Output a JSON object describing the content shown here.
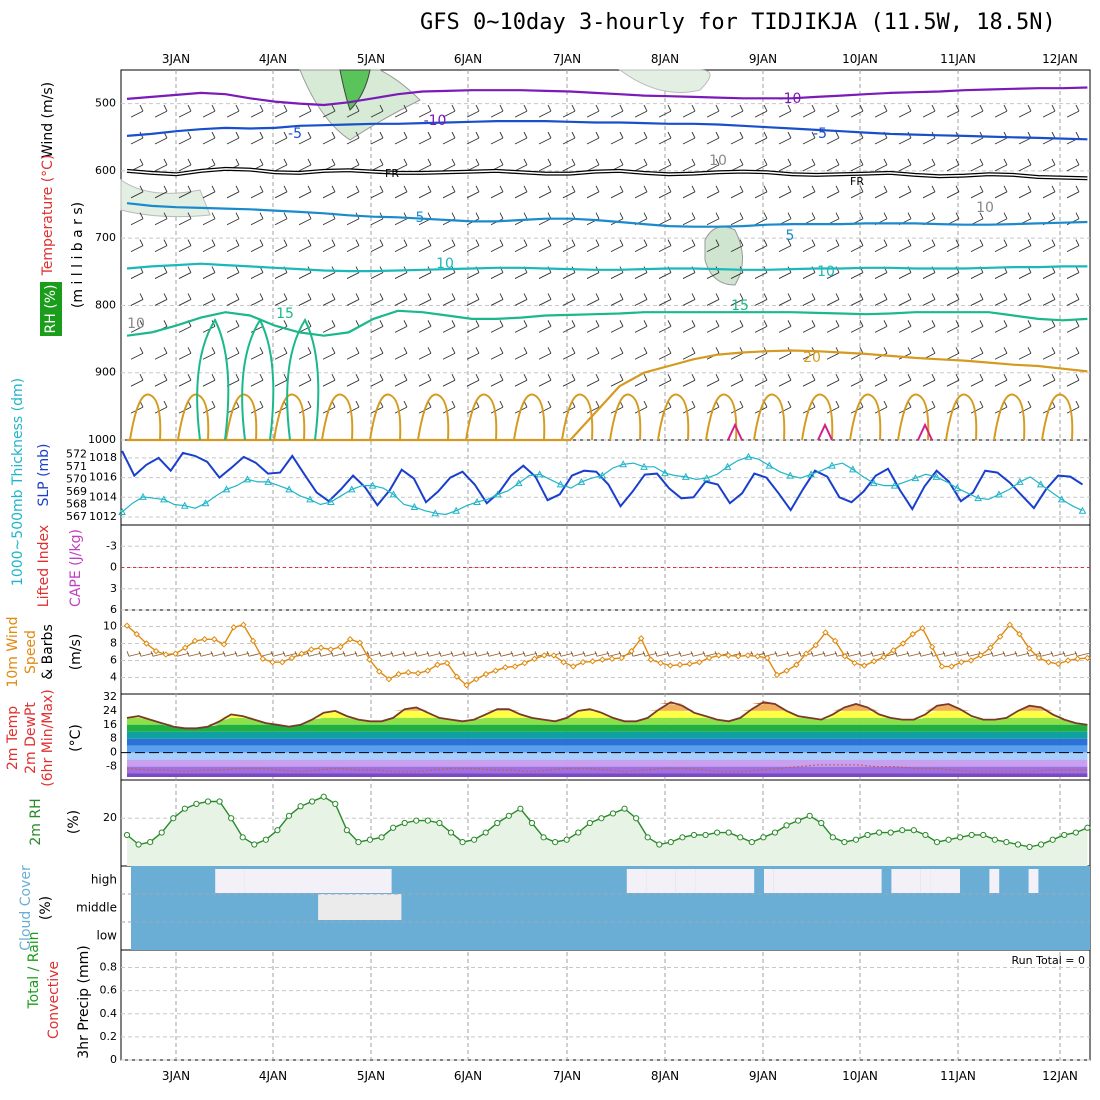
{
  "title": "GFS 0~10day 3-hourly for TIDJIKJA (11.5W, 18.5N)",
  "date_labels": [
    "3JAN",
    "4JAN",
    "5JAN",
    "6JAN",
    "7JAN",
    "8JAN",
    "9JAN",
    "10JAN",
    "11JAN",
    "12JAN"
  ],
  "colors": {
    "wind_label": "#000000",
    "temp_label": "#e03030",
    "rh_label": "#1a9d1a",
    "thickness": "#20b5c8",
    "slp": "#1a3fcc",
    "lifted_index": "#e03030",
    "cape": "#c040c0",
    "wind10m": "#e08a10",
    "barb": "#8a5a2a",
    "rh2m": "#2a8a2a",
    "cloud": "#6aaed6",
    "rain_total": "#1a9d1a",
    "convective": "#e03030"
  },
  "panels": {
    "upper_air": {
      "ylabel_wind": "Wind (m/s)",
      "ylabel_temp": "Temperature (°C)",
      "ylabel_rh": "RH (%)",
      "ylabel_p": "(m i l l i b a r s)",
      "ticks": [
        "500",
        "600",
        "700",
        "800",
        "900",
        "1000"
      ],
      "freezing_label": "FR",
      "contour_labels": [
        "-10",
        "-10",
        "-5",
        "-5",
        "5",
        "5",
        "10",
        "10",
        "15",
        "15",
        "20",
        "10",
        "10",
        "10"
      ]
    },
    "slp_thickness": {
      "ylabel_thickness": "1000~500mb Thickness (dm)",
      "ylabel_slp": "SLP (mb)",
      "thickness_ticks": [
        "572",
        "571",
        "570",
        "569",
        "568",
        "567"
      ],
      "slp_ticks": [
        "1018",
        "1016",
        "1014",
        "1012"
      ]
    },
    "stability": {
      "ylabel_li": "Lifted Index",
      "ylabel_cape": "CAPE (J/kg)",
      "ticks": [
        "-3",
        "0",
        "3",
        "6"
      ]
    },
    "wind10m": {
      "ylabel1": "10m Wind",
      "ylabel2": "Speed",
      "ylabel3": "& Barbs",
      "ylabel_unit": "(m/s)",
      "ticks": [
        "10",
        "8",
        "6",
        "4"
      ]
    },
    "temp2m": {
      "ylabel1": "2m Temp",
      "ylabel2": "2m DewPt",
      "ylabel3": "(6hr Min/Max)",
      "ylabel_unit": "(°C)",
      "ticks": [
        "32",
        "24",
        "16",
        "8",
        "0",
        "-8"
      ]
    },
    "rh2m": {
      "ylabel": "2m RH",
      "ylabel_unit": "(%)",
      "ticks": [
        "20"
      ]
    },
    "cloud": {
      "ylabel": "Cloud Cover",
      "ylabel_unit": "(%)",
      "levels": [
        "high",
        "middle",
        "low"
      ]
    },
    "precip": {
      "ylabel_total": "Total / Rain",
      "ylabel_conv": "Convective",
      "ylabel_unit": "3hr Precip (mm)",
      "run_total": "Run Total = 0",
      "ticks": [
        "0.8",
        "0.6",
        "0.4",
        "0.2",
        "0"
      ]
    }
  },
  "chart_data": {
    "type": "line",
    "x_unit": "days since 00Z 3JAN (3-hourly steps)",
    "x_range": [
      -0.5,
      9.3
    ],
    "upper_air_isotherms": [
      {
        "temp_c": -10,
        "pressure_mb": [
          493,
          490,
          487,
          484,
          486,
          492,
          497,
          500,
          502,
          498,
          492,
          486,
          482,
          481,
          480,
          480,
          480,
          481,
          482,
          484,
          486,
          488,
          489,
          490,
          491,
          492,
          492,
          492,
          490,
          488,
          486,
          484,
          483,
          482,
          480,
          479,
          478,
          477,
          477,
          476
        ]
      },
      {
        "temp_c": -5,
        "pressure_mb": [
          548,
          545,
          541,
          538,
          536,
          537,
          536,
          533,
          532,
          531,
          530,
          530,
          529,
          528,
          527,
          526,
          526,
          526,
          527,
          528,
          528,
          529,
          530,
          530,
          531,
          533,
          535,
          537,
          539,
          541,
          543,
          545,
          546,
          547,
          548,
          549,
          550,
          551,
          552,
          553
        ]
      },
      {
        "temp_c": 0,
        "pressure_mb": [
          600,
          603,
          605,
          600,
          597,
          598,
          602,
          603,
          600,
          599,
          601,
          603,
          603,
          602,
          601,
          600,
          602,
          604,
          604,
          601,
          600,
          603,
          605,
          604,
          602,
          601,
          602,
          605,
          606,
          605,
          604,
          603,
          606,
          608,
          607,
          605,
          606,
          609,
          610,
          611
        ]
      },
      {
        "temp_c": 5,
        "pressure_mb": [
          648,
          652,
          654,
          655,
          656,
          657,
          659,
          661,
          663,
          666,
          668,
          669,
          671,
          673,
          675,
          675,
          673,
          671,
          671,
          673,
          676,
          679,
          682,
          683,
          683,
          682,
          680,
          679,
          679,
          679,
          678,
          678,
          678,
          679,
          680,
          680,
          679,
          678,
          677,
          676
        ]
      },
      {
        "temp_c": 10,
        "pressure_mb": [
          745,
          742,
          740,
          738,
          740,
          742,
          744,
          746,
          748,
          749,
          749,
          748,
          747,
          746,
          745,
          744,
          744,
          745,
          746,
          747,
          747,
          746,
          745,
          745,
          746,
          747,
          747,
          746,
          745,
          745,
          744,
          744,
          745,
          745,
          745,
          744,
          743,
          743,
          742,
          742
        ]
      },
      {
        "temp_c": 15,
        "pressure_mb": [
          845,
          840,
          830,
          818,
          810,
          815,
          830,
          840,
          845,
          840,
          820,
          808,
          810,
          815,
          820,
          820,
          818,
          815,
          814,
          813,
          812,
          810,
          810,
          810,
          810,
          810,
          810,
          810,
          811,
          812,
          813,
          812,
          810,
          810,
          810,
          810,
          815,
          820,
          822,
          820
        ]
      },
      {
        "temp_c": 20,
        "pressure_mb": [
          1000,
          1000,
          1000,
          1000,
          1000,
          1000,
          1000,
          1000,
          1000,
          1000,
          1000,
          1000,
          1000,
          1000,
          1000,
          1000,
          1000,
          1000,
          1000,
          960,
          920,
          900,
          890,
          880,
          873,
          870,
          868,
          867,
          868,
          870,
          872,
          875,
          878,
          880,
          882,
          885,
          888,
          890,
          894,
          898
        ]
      }
    ],
    "slp_mb": [
      1018.7,
      1016.2,
      1017.3,
      1018.0,
      1016.7,
      1018.5,
      1018.2,
      1017.6,
      1016.0,
      1017.0,
      1018.1,
      1017.5,
      1016.4,
      1016.5,
      1018.2,
      1016.3,
      1014.5,
      1013.6,
      1014.8,
      1016.2,
      1015.0,
      1013.2,
      1014.7,
      1016.8,
      1015.9,
      1013.5,
      1014.6,
      1016.0,
      1016.6,
      1015.3,
      1013.4,
      1014.5,
      1016.2,
      1017.2,
      1016.1,
      1013.7,
      1014.3,
      1016.2,
      1016.7,
      1016.6,
      1015.3,
      1013.1,
      1014.6,
      1016.3,
      1016.4,
      1014.9,
      1013.9,
      1014.0,
      1015.6,
      1015.3,
      1013.4,
      1014.4,
      1016.4,
      1016.0,
      1014.4,
      1012.7,
      1014.8,
      1016.7,
      1016.1,
      1014.0,
      1013.5,
      1014.6,
      1016.2,
      1016.9,
      1014.7,
      1012.8,
      1015.1,
      1016.7,
      1015.6,
      1013.6,
      1014.5,
      1016.7,
      1016.5,
      1015.5,
      1014.2,
      1012.9,
      1014.8,
      1016.2,
      1016.1,
      1015.3
    ],
    "thickness_dm": [
      567.4,
      568.1,
      568.6,
      568.5,
      568.4,
      568.0,
      567.9,
      567.7,
      568.1,
      568.7,
      569.2,
      569.5,
      570.0,
      569.8,
      569.8,
      569.5,
      569.2,
      568.7,
      568.4,
      568.0,
      568.2,
      568.7,
      569.2,
      569.5,
      569.5,
      569.3,
      568.8,
      568.0,
      567.8,
      567.5,
      567.3,
      567.2,
      567.5,
      567.9,
      568.2,
      568.4,
      568.8,
      569.1,
      569.7,
      570.3,
      570.4,
      570.0,
      569.6,
      569.3,
      569.8,
      570.1,
      570.3,
      570.9,
      571.2,
      571.3,
      571.0,
      571.0,
      570.5,
      570.3,
      570.2,
      570.0,
      570.1,
      570.4,
      571.0,
      571.5,
      571.8,
      571.6,
      571.1,
      570.6,
      570.3,
      570.1,
      570.4,
      570.7,
      571.1,
      571.3,
      570.8,
      570.2,
      569.7,
      569.5,
      569.5,
      569.8,
      570.1,
      570.4,
      570.2,
      569.8,
      569.3,
      568.9,
      568.5,
      568.4,
      568.8,
      569.2,
      569.8,
      570.2,
      569.6,
      569.0,
      568.4,
      567.9,
      567.5
    ],
    "lifted_index_zero_line": 0,
    "wind10m_speed_ms": [
      10.1,
      9.1,
      8.0,
      7.1,
      6.7,
      6.8,
      7.5,
      8.3,
      8.5,
      8.5,
      7.9,
      9.9,
      10.2,
      8.3,
      6.2,
      5.8,
      5.8,
      6.3,
      6.8,
      7.3,
      7.5,
      7.3,
      7.6,
      8.5,
      8.1,
      6.1,
      4.7,
      3.8,
      4.4,
      4.6,
      4.5,
      4.8,
      5.5,
      5.7,
      4.1,
      3.1,
      3.8,
      4.4,
      4.8,
      5.2,
      5.3,
      5.7,
      6.2,
      6.6,
      6.6,
      5.8,
      5.3,
      5.8,
      5.9,
      6.1,
      6.2,
      6.3,
      7.1,
      8.6,
      6.1,
      5.7,
      5.4,
      5.5,
      5.6,
      5.8,
      6.3,
      6.6,
      6.6,
      6.5,
      6.6,
      6.5,
      6.3,
      4.3,
      4.8,
      5.5,
      6.8,
      7.8,
      9.3,
      8.3,
      6.5,
      5.7,
      5.4,
      5.9,
      6.4,
      7.2,
      8.0,
      9.1,
      9.8,
      7.6,
      5.3,
      5.3,
      5.8,
      6.0,
      6.6,
      7.5,
      8.8,
      10.2,
      9.1,
      7.4,
      6.3,
      5.8,
      5.6,
      6.0,
      6.2,
      6.3
    ],
    "temp2m_c": [
      20,
      21,
      19,
      17,
      15,
      14,
      14,
      15,
      18,
      22,
      21,
      19,
      17,
      16,
      15,
      16,
      19,
      23,
      24,
      21,
      19,
      18,
      18,
      20,
      25,
      26,
      23,
      20,
      19,
      18,
      19,
      22,
      25,
      25,
      22,
      20,
      19,
      18,
      20,
      24,
      25,
      23,
      20,
      18,
      18,
      20,
      25,
      29,
      27,
      23,
      21,
      19,
      18,
      20,
      25,
      29,
      28,
      24,
      21,
      20,
      19,
      22,
      26,
      28,
      26,
      22,
      20,
      19,
      19,
      22,
      27,
      28,
      25,
      21,
      19,
      19,
      20,
      24,
      27,
      26,
      22,
      19,
      17,
      16
    ],
    "dewpoint2m_c": [
      -9,
      -10,
      -10,
      -11,
      -10,
      -10,
      -9,
      -9,
      -10,
      -11,
      -10,
      -9,
      -10,
      -10,
      -11,
      -11,
      -10,
      -9,
      -9,
      -10,
      -10,
      -11,
      -10,
      -9,
      -9,
      -10,
      -11,
      -10,
      -9,
      -9,
      -10,
      -11,
      -11,
      -10,
      -9,
      -8,
      -7,
      -7,
      -7,
      -8,
      -8,
      -9,
      -9,
      -10,
      -11,
      -11,
      -11,
      -11,
      -10,
      -10,
      -10
    ],
    "rh2m_pct": [
      13,
      9,
      10,
      14,
      20,
      24,
      26,
      27,
      27,
      20,
      12,
      9,
      11,
      15,
      21,
      25,
      27,
      29,
      26,
      15,
      10,
      11,
      12,
      16,
      18,
      19,
      19,
      18,
      14,
      10,
      11,
      14,
      18,
      21,
      24,
      18,
      12,
      10,
      11,
      14,
      18,
      20,
      22,
      24,
      20,
      12,
      9,
      10,
      12,
      13,
      13,
      14,
      14,
      12,
      10,
      12,
      14,
      17,
      19,
      21,
      18,
      12,
      10,
      11,
      13,
      14,
      14,
      15,
      15,
      13,
      10,
      11,
      12,
      13,
      13,
      11,
      10,
      9,
      8,
      9,
      11,
      13,
      14,
      16
    ],
    "cloud_high_clear_intervals_days": [
      [
        0.4,
        0.7
      ],
      [
        0.7,
        2.2
      ],
      [
        4.6,
        4.8
      ],
      [
        4.8,
        5.1
      ],
      [
        5.1,
        5.3
      ],
      [
        5.3,
        5.5
      ],
      [
        5.5,
        5.9
      ],
      [
        6.0,
        6.1
      ],
      [
        6.1,
        7.2
      ],
      [
        7.3,
        7.6
      ],
      [
        7.6,
        7.7
      ],
      [
        7.7,
        8.0
      ],
      [
        8.3,
        8.4
      ],
      [
        8.7,
        8.8
      ]
    ],
    "cloud_mid_clear_intervals_days": [
      [
        1.45,
        2.3
      ]
    ],
    "precip_3hr_mm": [
      0,
      0,
      0,
      0,
      0,
      0,
      0,
      0,
      0,
      0
    ],
    "precip_run_total_mm": 0
  }
}
